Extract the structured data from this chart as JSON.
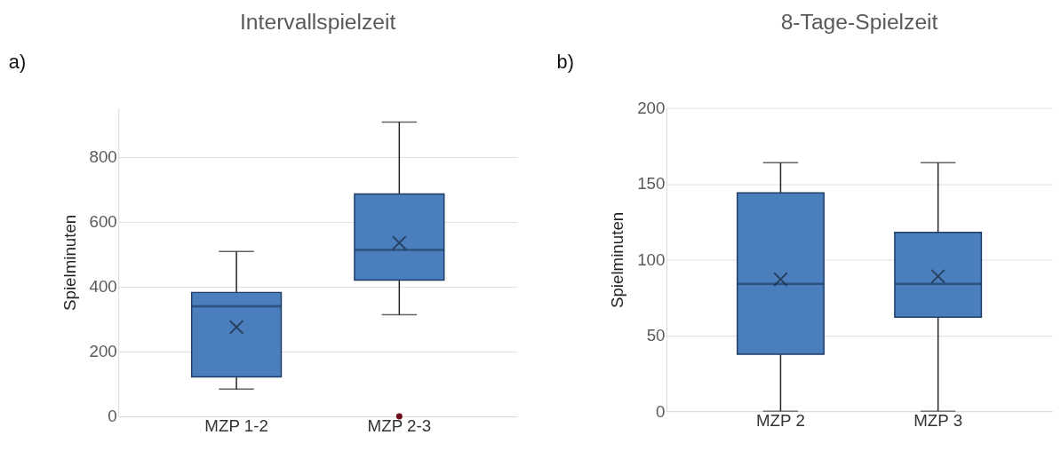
{
  "chart_data": [
    {
      "type": "box",
      "title": "Intervallspielzeit",
      "ylabel": "Spielminuten",
      "annotations": [
        "a)"
      ],
      "categories": [
        "MZP 1-2",
        "MZP 2-3"
      ],
      "color": "#4a7ebc",
      "marker": "cross",
      "grid": "y",
      "ylim": [
        0,
        950
      ],
      "yticks": [
        0,
        200,
        400,
        600,
        800
      ],
      "boxes": [
        {
          "low": 84,
          "q1": 122,
          "median": 339,
          "q3": 382,
          "high": 508,
          "mean": 275
        },
        {
          "low": 313,
          "q1": 420,
          "median": 513,
          "q3": 685,
          "high": 907,
          "mean": 535,
          "outliers": [
            0
          ]
        }
      ]
    },
    {
      "type": "box",
      "title": "8-Tage-Spielzeit",
      "ylabel": "Spielminuten",
      "annotations": [
        "b)"
      ],
      "categories": [
        "MZP 2",
        "MZP 3"
      ],
      "color": "#4a7ebc",
      "marker": "cross",
      "grid": "y",
      "ylim": [
        0,
        200
      ],
      "yticks": [
        0,
        50,
        100,
        150,
        200
      ],
      "boxes": [
        {
          "low": 0,
          "q1": 37.5,
          "median": 84,
          "q3": 144,
          "high": 164,
          "mean": 87
        },
        {
          "low": 0,
          "q1": 62,
          "median": 84,
          "q3": 118,
          "high": 164,
          "mean": 89
        }
      ]
    }
  ]
}
